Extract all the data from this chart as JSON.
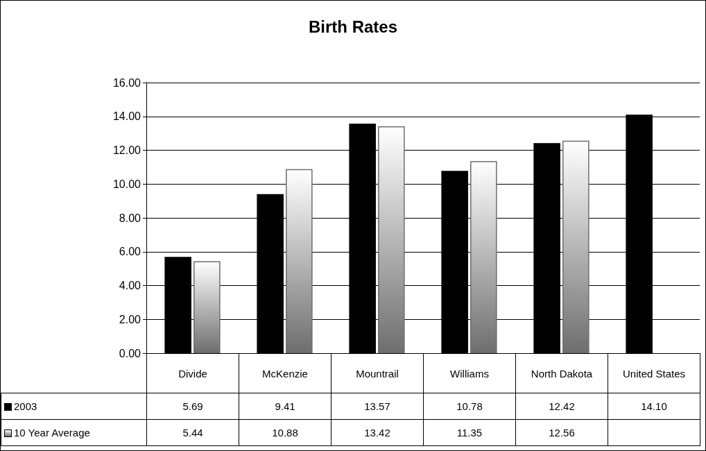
{
  "chart_data": {
    "type": "bar",
    "title": "Birth Rates",
    "categories": [
      "Divide",
      "McKenzie",
      "Mountrail",
      "Williams",
      "North Dakota",
      "United States"
    ],
    "series": [
      {
        "name": "2003",
        "color": "#000000",
        "values": [
          5.69,
          9.41,
          13.57,
          10.78,
          12.42,
          14.1
        ],
        "value_labels": [
          "5.69",
          "9.41",
          "13.57",
          "10.78",
          "12.42",
          "14.10"
        ]
      },
      {
        "name": "10 Year Average",
        "color": "#6e6e6e",
        "values": [
          5.44,
          10.88,
          13.42,
          11.35,
          12.56,
          null
        ],
        "value_labels": [
          "5.44",
          "10.88",
          "13.42",
          "11.35",
          "12.56",
          null
        ]
      }
    ],
    "ylim": [
      0,
      16
    ],
    "yticks": [
      {
        "value": 0,
        "label": "0.00"
      },
      {
        "value": 2,
        "label": "2.00"
      },
      {
        "value": 4,
        "label": "4.00"
      },
      {
        "value": 6,
        "label": "6.00"
      },
      {
        "value": 8,
        "label": "8.00"
      },
      {
        "value": 10,
        "label": "10.00"
      },
      {
        "value": 12,
        "label": "12.00"
      },
      {
        "value": 14,
        "label": "14.00"
      },
      {
        "value": 16,
        "label": "16.00"
      }
    ],
    "grid": "y",
    "legend": "bottom left"
  }
}
